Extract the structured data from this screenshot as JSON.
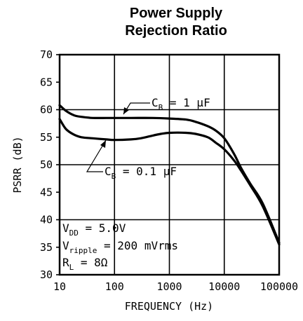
{
  "chart_data": {
    "type": "line",
    "title": [
      "Power Supply",
      "Rejection Ratio"
    ],
    "xlabel": "FREQUENCY (Hz)",
    "ylabel": "PSRR (dB)",
    "x_scale": "log",
    "xlim": [
      10,
      100000
    ],
    "ylim": [
      30,
      70
    ],
    "x_ticks": [
      10,
      100,
      1000,
      10000,
      100000
    ],
    "x_tick_labels": [
      "10",
      "100",
      "1000",
      "10000",
      "100000"
    ],
    "y_ticks": [
      30,
      35,
      40,
      45,
      50,
      55,
      60,
      65,
      70
    ],
    "y_tick_labels": [
      "30",
      "35",
      "40",
      "45",
      "50",
      "55",
      "60",
      "65",
      "70"
    ],
    "grid": true,
    "series": [
      {
        "name": "C_B = 1 µF",
        "x": [
          10,
          13,
          18,
          25,
          40,
          70,
          100,
          200,
          500,
          1000,
          2000,
          3000,
          5000,
          7000,
          10000,
          15000,
          20000,
          30000,
          50000,
          100000
        ],
        "y": [
          60.8,
          59.8,
          59.0,
          58.7,
          58.5,
          58.5,
          58.5,
          58.5,
          58.5,
          58.4,
          58.2,
          57.8,
          57.0,
          56.2,
          54.8,
          52.0,
          49.5,
          46.5,
          43.0,
          35.8
        ]
      },
      {
        "name": "C_B = 0.1 µF",
        "x": [
          10,
          13,
          18,
          25,
          40,
          70,
          100,
          200,
          300,
          500,
          700,
          1000,
          2000,
          3000,
          5000,
          7000,
          10000,
          15000,
          20000,
          30000,
          50000,
          100000
        ],
        "y": [
          58.3,
          56.5,
          55.5,
          55.0,
          54.8,
          54.6,
          54.5,
          54.6,
          54.8,
          55.3,
          55.6,
          55.8,
          55.8,
          55.6,
          55.0,
          54.0,
          52.8,
          50.8,
          49.0,
          46.2,
          42.5,
          35.5
        ]
      }
    ],
    "annotations": {
      "cb1_main": "C",
      "cb1_sub": "B",
      "cb1_rest": " = 1 µF",
      "cb01_main": "C",
      "cb01_sub": "B",
      "cb01_rest": " = 0.1 µF",
      "vdd_main": "V",
      "vdd_sub": "DD",
      "vdd_rest": " = 5.0V",
      "vr_main": "V",
      "vr_sub": "ripple",
      "vr_rest": " = 200 mVrms",
      "rl_main": "R",
      "rl_sub": "L",
      "rl_rest": " = 8Ω"
    }
  }
}
